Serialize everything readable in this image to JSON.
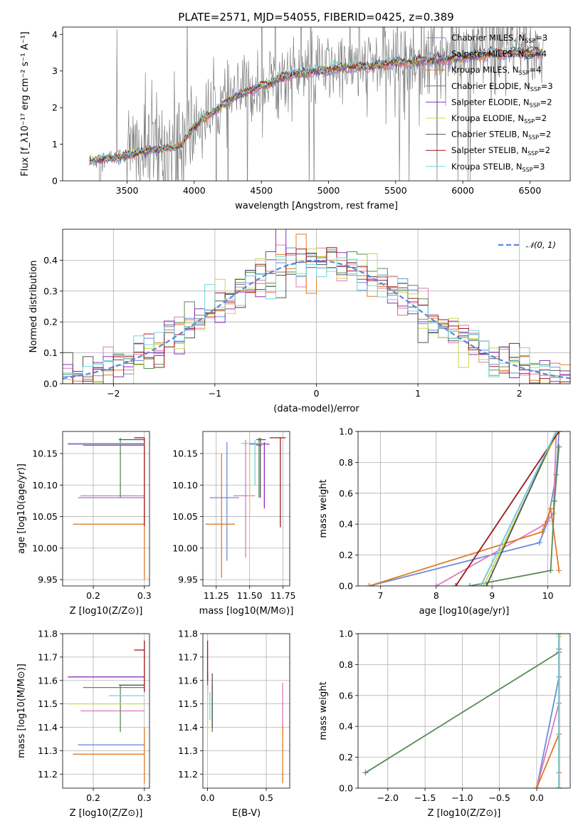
{
  "figure_title": "PLATE=2571, MJD=54055, FIBERID=0425, z=0.389",
  "colors": {
    "Chabrier MILES": "#6a8edb",
    "Salpeter MILES": "#e377b8",
    "Kroupa MILES": "#e07b27",
    "Chabrier ELODIE": "#5a8a5a",
    "Salpeter ELODIE": "#8e2fc0",
    "Kroupa ELODIE": "#c9d84a",
    "Chabrier STELIB": "#555555",
    "Salpeter STELIB": "#a01818",
    "Kroupa STELIB": "#70d6e0",
    "data": "#808080",
    "gaussian": "#5b86d6"
  },
  "chart_data": [
    {
      "id": "spectrum",
      "type": "line",
      "xlabel": "wavelength [Angstrom, rest frame]",
      "ylabel": "Flux [f_λ10⁻¹⁷ erg cm⁻² s⁻¹ A⁻¹]",
      "xlim": [
        3020,
        6800
      ],
      "ylim": [
        0,
        4.2
      ],
      "xticks": [
        3500,
        4000,
        4500,
        5000,
        5500,
        6000,
        6500
      ],
      "yticks": [
        0,
        1,
        2,
        3,
        4
      ],
      "grid": false,
      "legend_position": "top-right",
      "legend": [
        {
          "name": "Chabrier MILES",
          "nssp": "3"
        },
        {
          "name": "Salpeter MILES",
          "nssp": "4"
        },
        {
          "name": "Kroupa MILES",
          "nssp": "4"
        },
        {
          "name": "Chabrier ELODIE",
          "nssp": "3"
        },
        {
          "name": "Salpeter ELODIE",
          "nssp": "2"
        },
        {
          "name": "Kroupa ELODIE",
          "nssp": "2"
        },
        {
          "name": "Chabrier STELIB",
          "nssp": "2"
        },
        {
          "name": "Salpeter STELIB",
          "nssp": "2"
        },
        {
          "name": "Kroupa STELIB",
          "nssp": "3"
        }
      ],
      "model_continuum": {
        "x": [
          3200,
          3300,
          3400,
          3500,
          3600,
          3700,
          3800,
          3900,
          4000,
          4100,
          4300,
          4500,
          4700,
          4900,
          5100,
          5300,
          5500,
          5700,
          5900,
          6100,
          6300,
          6500,
          6600
        ],
        "y": [
          0.5,
          0.6,
          0.62,
          0.7,
          0.8,
          0.85,
          0.9,
          0.95,
          1.5,
          1.8,
          2.3,
          2.6,
          2.9,
          3.0,
          3.1,
          3.15,
          3.25,
          3.3,
          3.35,
          3.45,
          3.5,
          3.55,
          3.5
        ]
      }
    },
    {
      "id": "residuals",
      "type": "step",
      "xlabel": "(data-model)/error",
      "ylabel": "Normed distribution",
      "xlim": [
        -2.5,
        2.5
      ],
      "ylim": [
        0,
        0.5
      ],
      "xticks": [
        -2,
        -1,
        0,
        1,
        2
      ],
      "yticks": [
        0.0,
        0.1,
        0.2,
        0.3,
        0.4
      ],
      "grid": true,
      "legend_position": "top-right",
      "legend": [
        "𝒩(0, 1)"
      ],
      "gaussian": {
        "mean": 0,
        "sigma": 1
      }
    },
    {
      "id": "age-vs-Z",
      "type": "errorbar",
      "xlabel": "Z [log10(Z/Z⊙)]",
      "ylabel": "age  [log10(age/yr)]",
      "xlim": [
        0.14,
        0.31
      ],
      "ylim": [
        9.94,
        10.185
      ],
      "xticks": [
        0.2,
        0.3
      ],
      "yticks": [
        9.95,
        10.0,
        10.05,
        10.1,
        10.15
      ],
      "grid": true,
      "points": [
        {
          "series": "Chabrier MILES",
          "x": 0.3,
          "y": 10.08,
          "xlo": 0.17,
          "xhi": 0.3,
          "ylo": 10.08,
          "yhi": 10.08
        },
        {
          "series": "Salpeter MILES",
          "x": 0.3,
          "y": 10.083,
          "xlo": 0.175,
          "xhi": 0.3,
          "ylo": 10.083,
          "yhi": 10.083
        },
        {
          "series": "Kroupa MILES",
          "x": 0.3,
          "y": 10.038,
          "xlo": 0.16,
          "xhi": 0.3,
          "ylo": 9.95,
          "yhi": 10.06
        },
        {
          "series": "Chabrier ELODIE",
          "x": 0.253,
          "y": 10.163,
          "xlo": 0.18,
          "xhi": 0.3,
          "ylo": 10.08,
          "yhi": 10.175
        },
        {
          "series": "Salpeter ELODIE",
          "x": 0.3,
          "y": 10.165,
          "xlo": 0.15,
          "xhi": 0.3,
          "ylo": 10.165,
          "yhi": 10.165
        },
        {
          "series": "Kroupa ELODIE",
          "x": 0.3,
          "y": 10.166,
          "xlo": 0.15,
          "xhi": 0.3,
          "ylo": 10.166,
          "yhi": 10.166
        },
        {
          "series": "Chabrier STELIB",
          "x": 0.3,
          "y": 10.172,
          "xlo": 0.25,
          "xhi": 0.3,
          "ylo": 10.172,
          "yhi": 10.172
        },
        {
          "series": "Salpeter STELIB",
          "x": 0.3,
          "y": 10.175,
          "xlo": 0.28,
          "xhi": 0.3,
          "ylo": 10.035,
          "yhi": 10.175
        },
        {
          "series": "Kroupa STELIB",
          "x": 0.3,
          "y": 10.166,
          "xlo": 0.15,
          "xhi": 0.3,
          "ylo": 10.166,
          "yhi": 10.166
        }
      ]
    },
    {
      "id": "age-vs-mass",
      "type": "errorbar",
      "xlabel": "mass [log10(M/M⊙)]",
      "ylabel": "",
      "xlim": [
        11.15,
        11.8
      ],
      "ylim": [
        9.94,
        10.185
      ],
      "xticks": [
        11.25,
        11.5,
        11.75
      ],
      "yticks": [
        9.95,
        10.0,
        10.05,
        10.1,
        10.15
      ],
      "grid": true,
      "points": [
        {
          "series": "Chabrier MILES",
          "x": 11.33,
          "y": 10.08,
          "xlo": 11.2,
          "xhi": 11.42,
          "ylo": 9.98,
          "yhi": 10.168
        },
        {
          "series": "Salpeter MILES",
          "x": 11.47,
          "y": 10.083,
          "xlo": 11.38,
          "xhi": 11.54,
          "ylo": 9.985,
          "yhi": 10.172
        },
        {
          "series": "Kroupa MILES",
          "x": 11.29,
          "y": 10.038,
          "xlo": 11.17,
          "xhi": 11.39,
          "ylo": 9.953,
          "yhi": 10.15
        },
        {
          "series": "Chabrier ELODIE",
          "x": 11.57,
          "y": 10.163,
          "xlo": 11.55,
          "xhi": 11.59,
          "ylo": 10.08,
          "yhi": 10.175
        },
        {
          "series": "Salpeter ELODIE",
          "x": 11.61,
          "y": 10.165,
          "xlo": 11.5,
          "xhi": 11.65,
          "ylo": 10.063,
          "yhi": 10.168
        },
        {
          "series": "Kroupa ELODIE",
          "x": 11.5,
          "y": 10.166,
          "xlo": 11.44,
          "xhi": 11.6,
          "ylo": 10.053,
          "yhi": 10.172
        },
        {
          "series": "Chabrier STELIB",
          "x": 11.58,
          "y": 10.172,
          "xlo": 11.55,
          "xhi": 11.62,
          "ylo": 10.08,
          "yhi": 10.175
        },
        {
          "series": "Salpeter STELIB",
          "x": 11.73,
          "y": 10.175,
          "xlo": 11.65,
          "xhi": 11.77,
          "ylo": 10.033,
          "yhi": 10.176
        },
        {
          "series": "Kroupa STELIB",
          "x": 11.54,
          "y": 10.166,
          "xlo": 11.44,
          "xhi": 11.58,
          "ylo": 10.1,
          "yhi": 10.172
        }
      ]
    },
    {
      "id": "massweight-vs-age",
      "type": "line",
      "xlabel": "age  [log10(age/yr)]",
      "ylabel": "mass weight",
      "xlim": [
        6.6,
        10.4
      ],
      "ylim": [
        0,
        1.0
      ],
      "xticks": [
        7,
        8,
        9,
        10
      ],
      "yticks": [
        0.0,
        0.2,
        0.4,
        0.6,
        0.8,
        1.0
      ],
      "grid": true,
      "series": [
        {
          "name": "Chabrier MILES",
          "x": [
            6.8,
            9.85,
            10.0,
            10.15,
            10.2
          ],
          "y": [
            0.0,
            0.28,
            0.42,
            0.72,
            1.0
          ]
        },
        {
          "name": "Salpeter MILES",
          "x": [
            8.0,
            9.95,
            10.1,
            10.15
          ],
          "y": [
            0.0,
            0.4,
            0.47,
            1.0
          ]
        },
        {
          "name": "Kroupa MILES",
          "x": [
            6.8,
            9.9,
            10.05,
            10.2
          ],
          "y": [
            0.0,
            0.35,
            0.5,
            0.1
          ]
        },
        {
          "name": "Chabrier ELODIE",
          "x": [
            8.6,
            10.05,
            10.12,
            10.2
          ],
          "y": [
            0.0,
            0.1,
            0.55,
            0.9
          ]
        },
        {
          "name": "Salpeter ELODIE",
          "x": [
            8.8,
            10.15
          ],
          "y": [
            0.0,
            1.0
          ]
        },
        {
          "name": "Kroupa ELODIE",
          "x": [
            8.85,
            10.15
          ],
          "y": [
            0.0,
            0.98
          ]
        },
        {
          "name": "Chabrier STELIB",
          "x": [
            8.9,
            10.15
          ],
          "y": [
            0.0,
            1.0
          ]
        },
        {
          "name": "Salpeter STELIB",
          "x": [
            8.35,
            10.2
          ],
          "y": [
            0.0,
            1.0
          ]
        },
        {
          "name": "Kroupa STELIB",
          "x": [
            8.8,
            10.15
          ],
          "y": [
            0.0,
            1.0
          ]
        }
      ]
    },
    {
      "id": "mass-vs-Z",
      "type": "errorbar",
      "xlabel": "Z [log10(Z/Z⊙)]",
      "ylabel": "mass [log10(M/M⊙)]",
      "xlim": [
        0.14,
        0.31
      ],
      "ylim": [
        11.14,
        11.8
      ],
      "xticks": [
        0.2,
        0.3
      ],
      "yticks": [
        11.2,
        11.3,
        11.4,
        11.5,
        11.6,
        11.7,
        11.8
      ],
      "grid": true,
      "points": [
        {
          "series": "Chabrier MILES",
          "x": 0.3,
          "y": 11.325,
          "xlo": 0.17,
          "xhi": 0.3,
          "ylo": 11.325,
          "yhi": 11.325
        },
        {
          "series": "Salpeter MILES",
          "x": 0.3,
          "y": 11.47,
          "xlo": 0.175,
          "xhi": 0.3,
          "ylo": 11.47,
          "yhi": 11.47
        },
        {
          "series": "Kroupa MILES",
          "x": 0.3,
          "y": 11.285,
          "xlo": 0.16,
          "xhi": 0.3,
          "ylo": 11.16,
          "yhi": 11.4
        },
        {
          "series": "Chabrier ELODIE",
          "x": 0.253,
          "y": 11.57,
          "xlo": 0.18,
          "xhi": 0.3,
          "ylo": 11.38,
          "yhi": 11.58
        },
        {
          "series": "Salpeter ELODIE",
          "x": 0.3,
          "y": 11.615,
          "xlo": 0.15,
          "xhi": 0.3,
          "ylo": 11.615,
          "yhi": 11.615
        },
        {
          "series": "Kroupa ELODIE",
          "x": 0.3,
          "y": 11.5,
          "xlo": 0.15,
          "xhi": 0.3,
          "ylo": 11.5,
          "yhi": 11.5
        },
        {
          "series": "Chabrier STELIB",
          "x": 0.3,
          "y": 11.58,
          "xlo": 0.25,
          "xhi": 0.3,
          "ylo": 11.58,
          "yhi": 11.58
        },
        {
          "series": "Salpeter STELIB",
          "x": 0.3,
          "y": 11.73,
          "xlo": 0.28,
          "xhi": 0.3,
          "ylo": 11.55,
          "yhi": 11.77
        },
        {
          "series": "Kroupa STELIB",
          "x": 0.3,
          "y": 11.535,
          "xlo": 0.23,
          "xhi": 0.3,
          "ylo": 11.535,
          "yhi": 11.535
        }
      ]
    },
    {
      "id": "mass-vs-ebv",
      "type": "errorbar",
      "xlabel": "E(B-V)",
      "ylabel": "",
      "xlim": [
        -0.04,
        0.7
      ],
      "ylim": [
        11.14,
        11.8
      ],
      "xticks": [
        0.0,
        0.5
      ],
      "yticks": [
        11.2,
        11.3,
        11.4,
        11.5,
        11.6,
        11.7,
        11.8
      ],
      "grid": true,
      "points": [
        {
          "series": "Chabrier MILES",
          "x": 0.0,
          "y": 11.325,
          "ylo": 11.325,
          "yhi": 11.325
        },
        {
          "series": "Salpeter MILES",
          "x": 0.64,
          "y": 11.47,
          "ylo": 11.37,
          "yhi": 11.59
        },
        {
          "series": "Kroupa MILES",
          "x": 0.64,
          "y": 11.285,
          "ylo": 11.16,
          "yhi": 11.41
        },
        {
          "series": "Chabrier ELODIE",
          "x": 0.04,
          "y": 11.57,
          "ylo": 11.38,
          "yhi": 11.58
        },
        {
          "series": "Salpeter ELODIE",
          "x": 0.0,
          "y": 11.615,
          "ylo": 11.54,
          "yhi": 11.64
        },
        {
          "series": "Kroupa ELODIE",
          "x": 0.0,
          "y": 11.5,
          "ylo": 11.37,
          "yhi": 11.58
        },
        {
          "series": "Chabrier STELIB",
          "x": 0.04,
          "y": 11.58,
          "ylo": 11.4,
          "yhi": 11.63
        },
        {
          "series": "Salpeter STELIB",
          "x": 0.0,
          "y": 11.73,
          "ylo": 11.6,
          "yhi": 11.77
        },
        {
          "series": "Kroupa STELIB",
          "x": 0.02,
          "y": 11.535,
          "ylo": 11.43,
          "yhi": 11.55
        }
      ]
    },
    {
      "id": "massweight-vs-Z",
      "type": "line",
      "xlabel": "Z [log10(Z/Z⊙)]",
      "ylabel": "mass weight",
      "xlim": [
        -2.4,
        0.45
      ],
      "ylim": [
        0,
        1.0
      ],
      "xticks": [
        -2.0,
        -1.5,
        -1.0,
        -0.5,
        0.0
      ],
      "yticks": [
        0.0,
        0.2,
        0.4,
        0.6,
        0.8,
        1.0
      ],
      "grid": true,
      "series": [
        {
          "name": "Chabrier MILES",
          "x": [
            0.0,
            0.3,
            0.3
          ],
          "y": [
            0.0,
            0.72,
            1.0
          ]
        },
        {
          "name": "Salpeter MILES",
          "x": [
            0.0,
            0.3,
            0.3
          ],
          "y": [
            0.0,
            0.55,
            1.0
          ]
        },
        {
          "name": "Kroupa MILES",
          "x": [
            0.0,
            0.3,
            0.3
          ],
          "y": [
            0.0,
            0.35,
            0.1
          ]
        },
        {
          "name": "Chabrier ELODIE",
          "x": [
            -2.3,
            0.3,
            0.3
          ],
          "y": [
            0.1,
            0.88,
            0.9
          ]
        },
        {
          "name": "Salpeter ELODIE",
          "x": [
            0.3,
            0.3
          ],
          "y": [
            0.0,
            1.0
          ]
        },
        {
          "name": "Kroupa ELODIE",
          "x": [
            0.3,
            0.3
          ],
          "y": [
            0.0,
            0.98
          ]
        },
        {
          "name": "Chabrier STELIB",
          "x": [
            0.3,
            0.3
          ],
          "y": [
            0.0,
            1.0
          ]
        },
        {
          "name": "Salpeter STELIB",
          "x": [
            0.3,
            0.3
          ],
          "y": [
            0.0,
            1.0
          ]
        },
        {
          "name": "Kroupa STELIB",
          "x": [
            0.3,
            0.3
          ],
          "y": [
            0.0,
            1.0
          ]
        }
      ]
    }
  ]
}
